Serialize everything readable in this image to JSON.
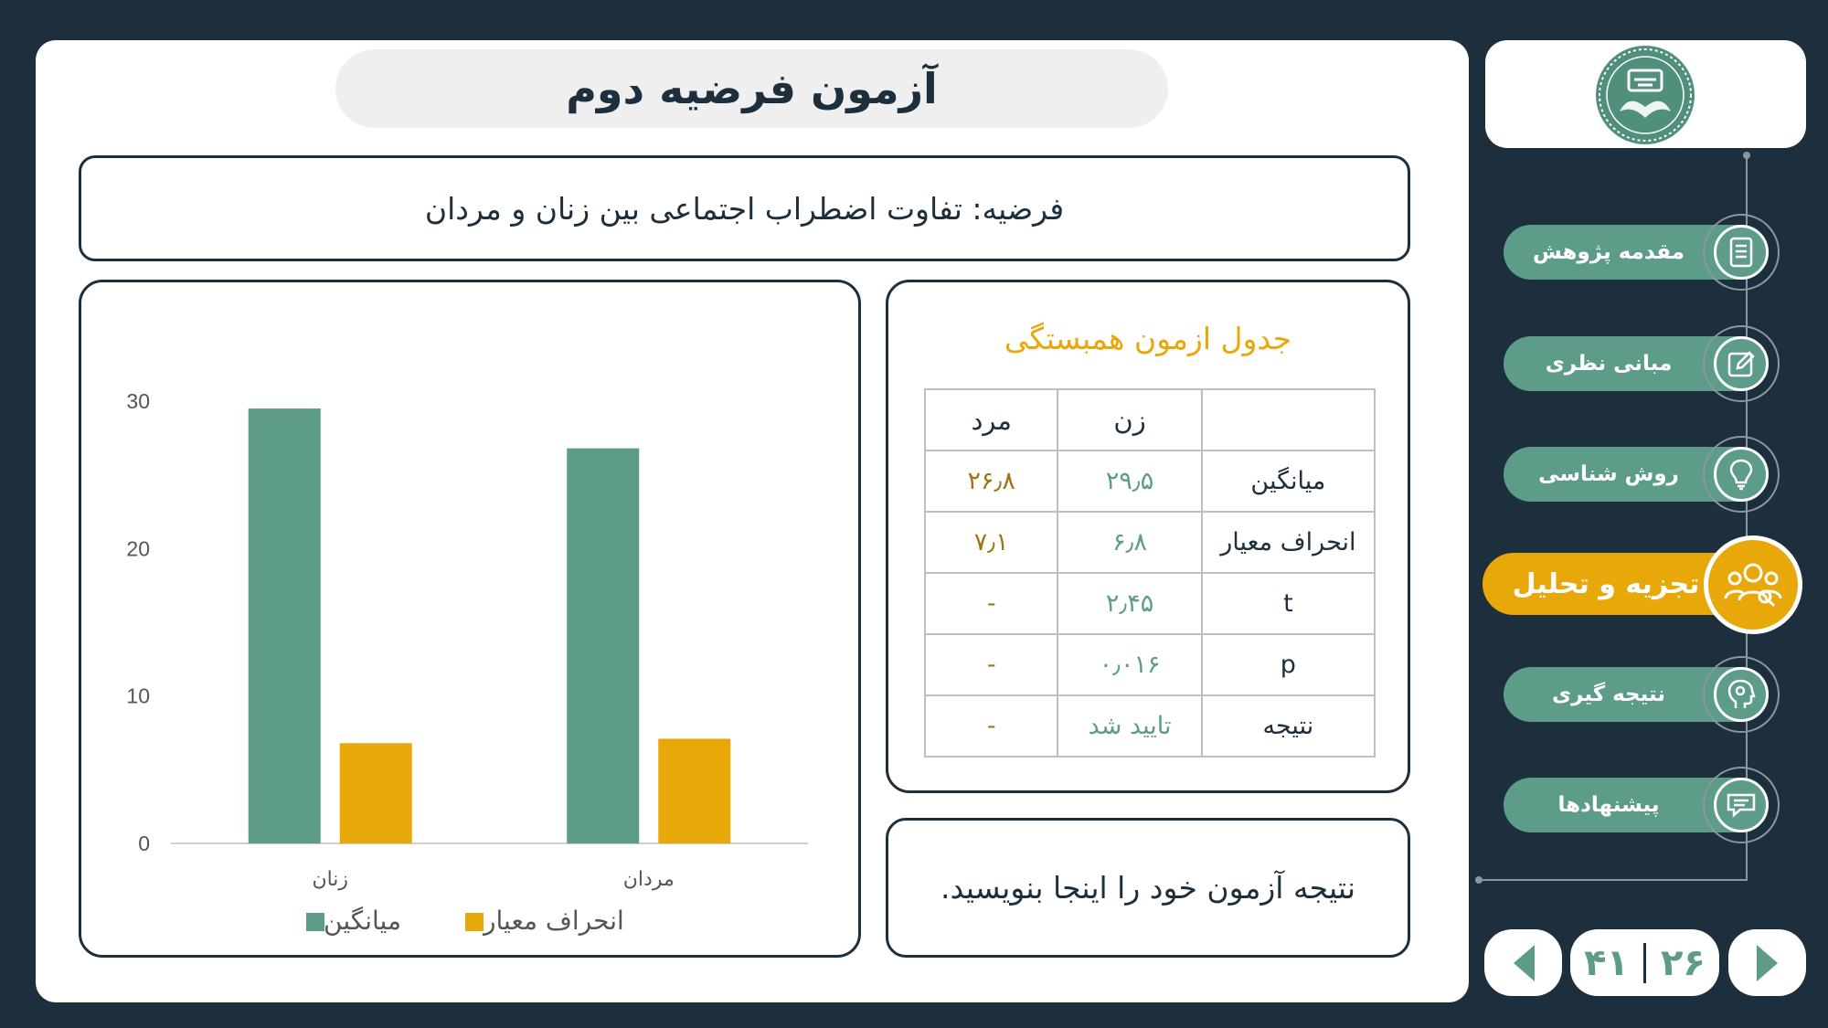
{
  "slide": {
    "title": "آزمون فرضیه دوم",
    "hypothesis": "فرضیه: تفاوت اضطراب اجتماعی بین زنان و مردان",
    "result_placeholder": "نتیجه آزمون خود را اینجا بنویسید."
  },
  "table": {
    "title": "جدول ازمون همبستگی",
    "headers": [
      "",
      "زن",
      "مرد"
    ],
    "rows": [
      {
        "label": "میانگین",
        "women": "۲۹٫۵",
        "men": "۲۶٫۸"
      },
      {
        "label": "انحراف معیار",
        "women": "۶٫۸",
        "men": "۷٫۱"
      },
      {
        "label": "t",
        "women": "۲٫۴۵",
        "men": "-"
      },
      {
        "label": "p",
        "women": "۰٫۰۱۶",
        "men": "-"
      },
      {
        "label": "نتیجه",
        "women": "تایید شد",
        "men": "-"
      }
    ]
  },
  "chart_data": {
    "type": "bar",
    "categories": [
      "زنان",
      "مردان"
    ],
    "series": [
      {
        "name": "میانگین",
        "values": [
          29.5,
          26.8
        ],
        "color": "#5d9c89"
      },
      {
        "name": "انحراف معیار",
        "values": [
          6.8,
          7.1
        ],
        "color": "#e8a80a"
      }
    ],
    "ylim": [
      0,
      30
    ],
    "yticks": [
      0,
      10,
      20,
      30
    ],
    "title": "",
    "xlabel": "",
    "ylabel": "",
    "legend": "bottom"
  },
  "nav": {
    "items": [
      {
        "label": "مقدمه پژوهش",
        "icon": "document-icon"
      },
      {
        "label": "مبانی نظری",
        "icon": "edit-icon"
      },
      {
        "label": "روش شناسی",
        "icon": "lightbulb-icon"
      },
      {
        "label": "تجزیه و تحلیل",
        "icon": "team-icon",
        "active": true
      },
      {
        "label": "نتیجه گیری",
        "icon": "head-icon"
      },
      {
        "label": "پیشنهادها",
        "icon": "chat-icon"
      }
    ]
  },
  "pagination": {
    "current": "۲۶",
    "total": "۴۱"
  },
  "colors": {
    "background": "#1d2f3c",
    "accent_green": "#5d9c89",
    "accent_yellow": "#e8a80a"
  }
}
